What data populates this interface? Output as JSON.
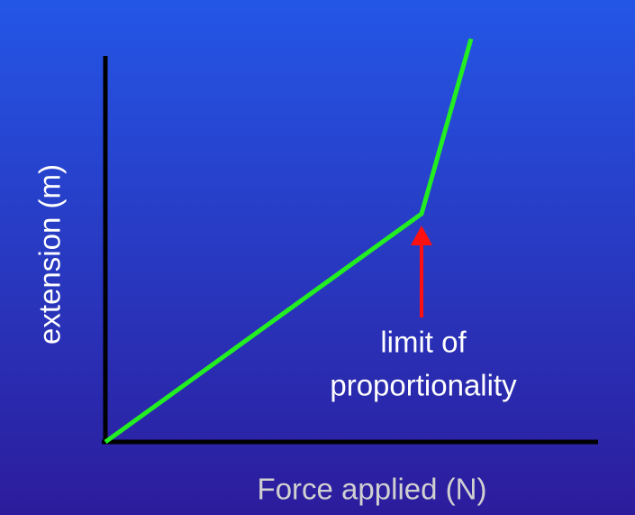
{
  "axes": {
    "x_label": "Force applied (N)",
    "y_label": "extension (m)"
  },
  "annotation": {
    "lines": [
      "limit of",
      "proportionality"
    ]
  }
}
